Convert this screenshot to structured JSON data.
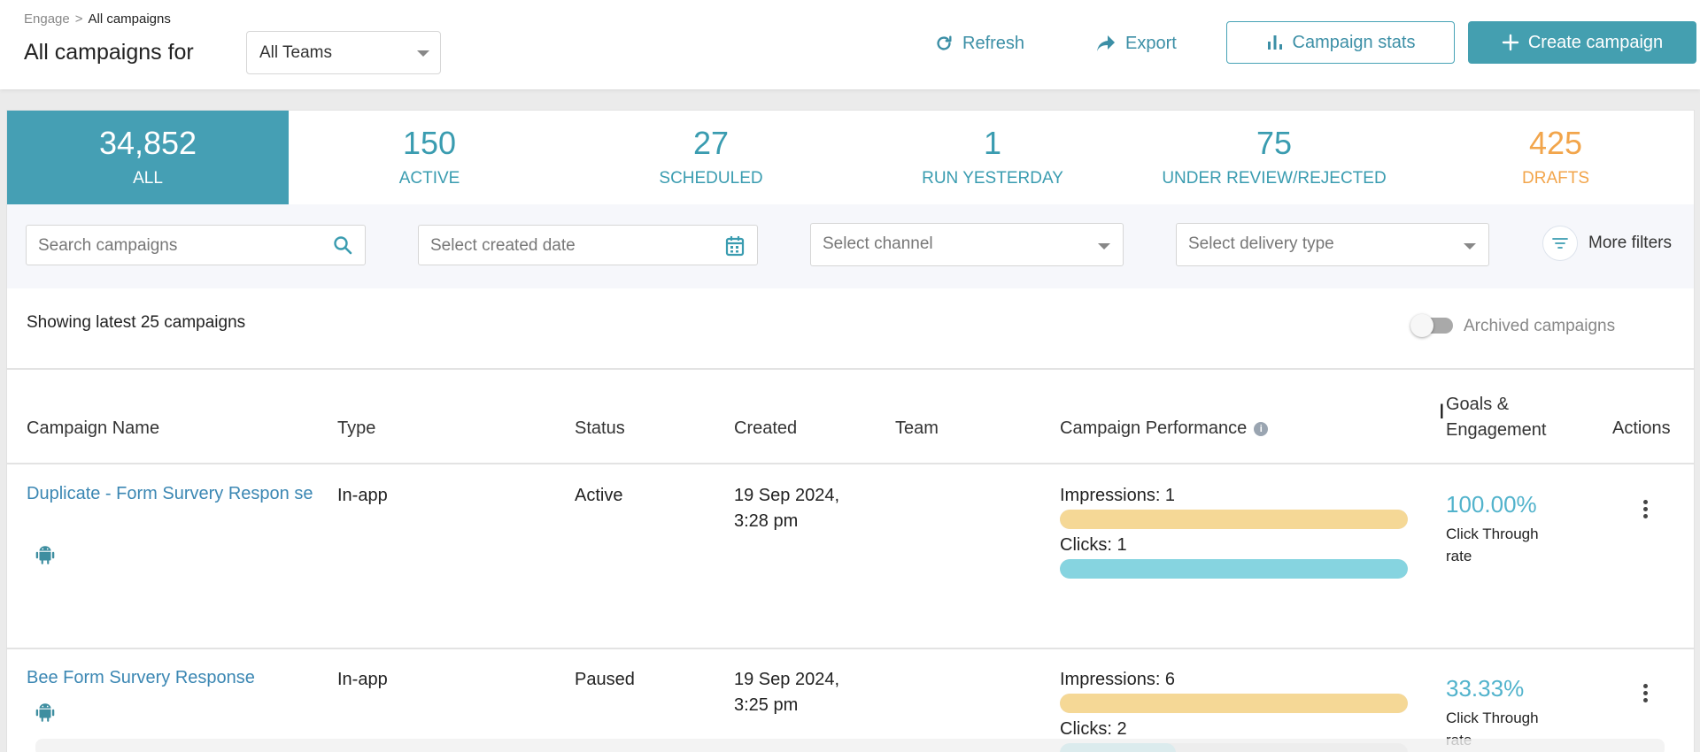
{
  "breadcrumb": {
    "parent": "Engage",
    "separator": ">",
    "current": "All campaigns"
  },
  "page_title": "All campaigns for",
  "team_select": {
    "value": "All Teams"
  },
  "toolbar": {
    "refresh_label": "Refresh",
    "export_label": "Export",
    "campaign_stats_label": "Campaign stats",
    "create_campaign_label": "Create campaign"
  },
  "stats": [
    {
      "count": "34,852",
      "label": "ALL"
    },
    {
      "count": "150",
      "label": "ACTIVE"
    },
    {
      "count": "27",
      "label": "SCHEDULED"
    },
    {
      "count": "1",
      "label": "RUN YESTERDAY"
    },
    {
      "count": "75",
      "label": "UNDER REVIEW/REJECTED"
    },
    {
      "count": "425",
      "label": "DRAFTS"
    }
  ],
  "filters": {
    "search_placeholder": "Search campaigns",
    "created_date_placeholder": "Select created date",
    "channel_placeholder": "Select channel",
    "delivery_type_placeholder": "Select delivery type",
    "more_filters_label": "More filters"
  },
  "showing_text": "Showing latest 25 campaigns",
  "archived_label": "Archived campaigns",
  "table": {
    "columns": {
      "name": "Campaign Name",
      "type": "Type",
      "status": "Status",
      "created": "Created",
      "team": "Team",
      "performance": "Campaign Performance",
      "goals_line1": "Goals &",
      "goals_line2": "Engagement",
      "actions": "Actions"
    },
    "rows": [
      {
        "name": "Duplicate - Form Survery Respon se",
        "type": "In-app",
        "status": "Active",
        "created_date": "19 Sep 2024,",
        "created_time": "3:28 pm",
        "team": "",
        "impressions_label": "Impressions: 1",
        "impressions_fill": 1.0,
        "clicks_label": "Clicks: 1",
        "clicks_fill": 1.0,
        "rate": "100.00%",
        "rate_label": "Click Through rate"
      },
      {
        "name": "Bee Form Survery Response",
        "type": "In-app",
        "status": "Paused",
        "created_date": "19 Sep 2024,",
        "created_time": "3:25 pm",
        "team": "",
        "impressions_label": "Impressions: 6",
        "impressions_fill": 1.0,
        "clicks_label": "Clicks: 2",
        "clicks_fill": 0.333,
        "rate": "33.33%",
        "rate_label": "Click Through rate"
      }
    ]
  },
  "colors": {
    "accent": "#459fb4",
    "drafts": "#f2a54b",
    "impressions_bar": "#f5d896",
    "clicks_bar": "#86d4e0",
    "link": "#3b87b3"
  }
}
